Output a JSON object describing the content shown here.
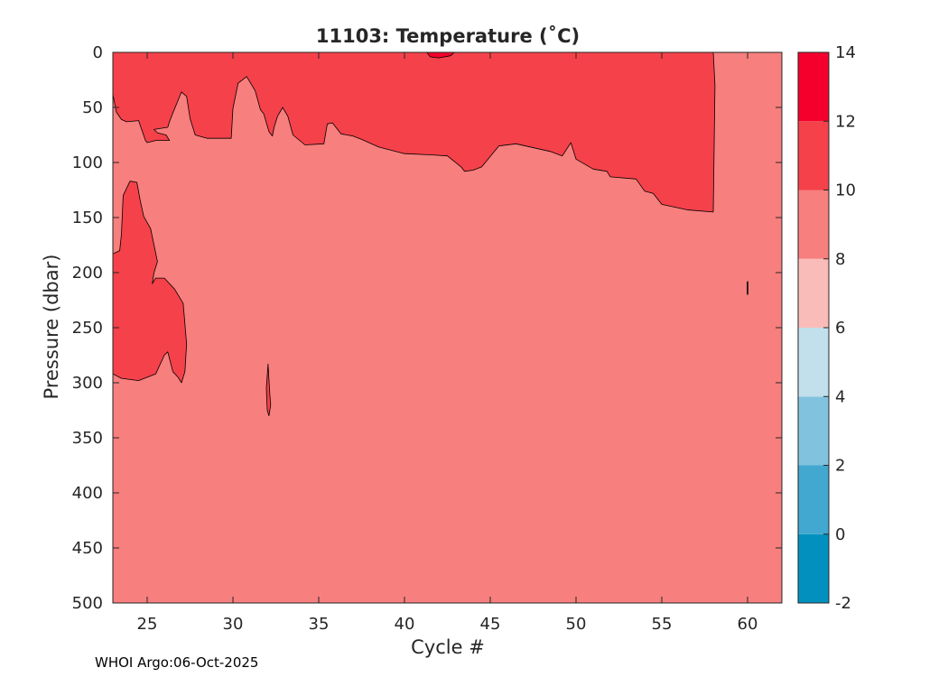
{
  "chart_data": {
    "type": "contour",
    "title": "11103:  Temperature (˚C)",
    "xlabel": "Cycle #",
    "ylabel": "Pressure (dbar)",
    "xlim": [
      23,
      62
    ],
    "ylim": [
      0,
      500
    ],
    "y_reversed": true,
    "xticks": [
      25,
      30,
      35,
      40,
      45,
      50,
      55,
      60
    ],
    "yticks": [
      0,
      50,
      100,
      150,
      200,
      250,
      300,
      350,
      400,
      450,
      500
    ],
    "colorbar": {
      "levels": [
        -2,
        0,
        2,
        4,
        6,
        8,
        10,
        12,
        14
      ],
      "colors": [
        "#0291bf",
        "#42a8cf",
        "#81c3de",
        "#c1e0ec",
        "#fabcb9",
        "#f77f7d",
        "#f5414a",
        "#f5002c"
      ],
      "ticks": [
        -2,
        0,
        2,
        4,
        6,
        8,
        10,
        12,
        14
      ]
    },
    "background_band": {
      "range": "8-10",
      "color": "#f77f7d"
    },
    "regions": [
      {
        "name": "upper-warm-layer",
        "range": "10-12",
        "color": "#f5414a",
        "points": [
          [
            23,
            0
          ],
          [
            58,
            0
          ],
          [
            58.1,
            30
          ],
          [
            58,
            145
          ],
          [
            56.5,
            143
          ],
          [
            55,
            138
          ],
          [
            54.5,
            128
          ],
          [
            54,
            126
          ],
          [
            53.5,
            115
          ],
          [
            52,
            113
          ],
          [
            51.8,
            108
          ],
          [
            51,
            106
          ],
          [
            50,
            97
          ],
          [
            49.7,
            82
          ],
          [
            49.2,
            94
          ],
          [
            48.5,
            90
          ],
          [
            46.5,
            83
          ],
          [
            45.5,
            85
          ],
          [
            44.5,
            104
          ],
          [
            44,
            107
          ],
          [
            43.5,
            108
          ],
          [
            43.3,
            104
          ],
          [
            42.5,
            94
          ],
          [
            41.5,
            93
          ],
          [
            40,
            92
          ],
          [
            38.5,
            86
          ],
          [
            37.5,
            79
          ],
          [
            37,
            76
          ],
          [
            36.3,
            74
          ],
          [
            35.8,
            64
          ],
          [
            35.5,
            65
          ],
          [
            35.3,
            83
          ],
          [
            34.2,
            84
          ],
          [
            33.5,
            75
          ],
          [
            33.2,
            58
          ],
          [
            32.9,
            50
          ],
          [
            32.6,
            58
          ],
          [
            32.4,
            68
          ],
          [
            32.3,
            76
          ],
          [
            32.1,
            72
          ],
          [
            31.8,
            56
          ],
          [
            31.6,
            52
          ],
          [
            31.3,
            35
          ],
          [
            30.8,
            22
          ],
          [
            30.3,
            28
          ],
          [
            30,
            51
          ],
          [
            29.9,
            78
          ],
          [
            28.5,
            78
          ],
          [
            27.8,
            75
          ],
          [
            27.5,
            60
          ],
          [
            27.3,
            40
          ],
          [
            27,
            36
          ],
          [
            26.5,
            55
          ],
          [
            26.3,
            63
          ],
          [
            26.2,
            68
          ],
          [
            25.4,
            70
          ],
          [
            25.6,
            73
          ],
          [
            26.1,
            75
          ],
          [
            26.3,
            80
          ],
          [
            25.5,
            80
          ],
          [
            25,
            82
          ],
          [
            24.9,
            80
          ],
          [
            24.5,
            62
          ],
          [
            23.8,
            63
          ],
          [
            23.5,
            61
          ],
          [
            23.2,
            54
          ],
          [
            23,
            38
          ]
        ]
      },
      {
        "name": "lower-left-warm-patch",
        "range": "10-12",
        "color": "#f5414a",
        "points": [
          [
            23,
            183
          ],
          [
            23.4,
            180
          ],
          [
            23.5,
            165
          ],
          [
            23.6,
            130
          ],
          [
            24,
            117
          ],
          [
            24.4,
            118
          ],
          [
            24.6,
            135
          ],
          [
            24.8,
            149
          ],
          [
            25.2,
            160
          ],
          [
            25.6,
            190
          ],
          [
            25.4,
            200
          ],
          [
            25.3,
            210
          ],
          [
            25.5,
            205
          ],
          [
            26,
            205
          ],
          [
            26.6,
            215
          ],
          [
            27.1,
            228
          ],
          [
            27.3,
            265
          ],
          [
            27.2,
            290
          ],
          [
            27,
            300
          ],
          [
            26.8,
            295
          ],
          [
            26.5,
            290
          ],
          [
            26.2,
            272
          ],
          [
            26,
            275
          ],
          [
            25.5,
            292
          ],
          [
            24.5,
            298
          ],
          [
            23.5,
            296
          ],
          [
            23,
            292
          ]
        ]
      },
      {
        "name": "surface-patch-cycle-42",
        "range": "12-14",
        "color": "#f5002c",
        "points": [
          [
            41.3,
            0
          ],
          [
            42.9,
            0
          ],
          [
            42.7,
            3
          ],
          [
            42,
            5
          ],
          [
            41.5,
            4
          ]
        ]
      },
      {
        "name": "thin-warm-streak-cycle-32",
        "range": "10-12",
        "color": "#f5414a",
        "points": [
          [
            32.05,
            283
          ],
          [
            32.15,
            310
          ],
          [
            32.2,
            320
          ],
          [
            32.1,
            330
          ],
          [
            32,
            325
          ],
          [
            31.95,
            305
          ]
        ]
      }
    ],
    "contour_marks": [
      {
        "name": "isolated-contour-cycle-60",
        "x": 60,
        "y_from": 208,
        "y_to": 220
      }
    ]
  },
  "footer": {
    "credit": "WHOI Argo:06-Oct-2025"
  }
}
